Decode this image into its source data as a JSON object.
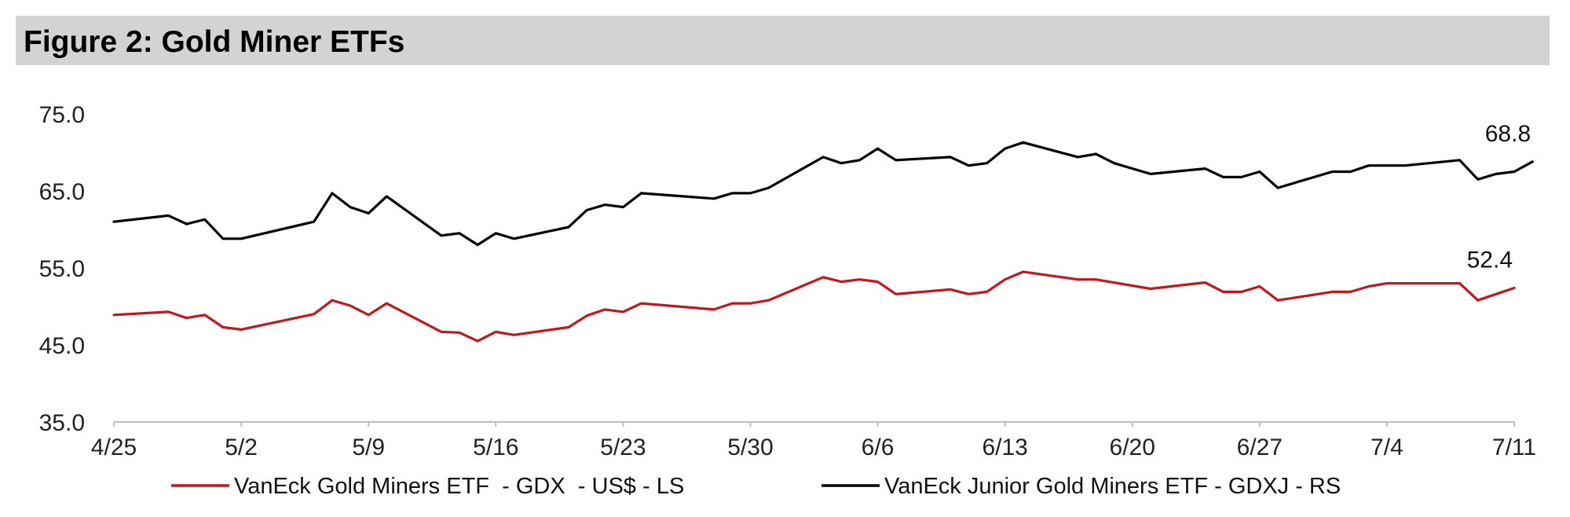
{
  "title": "Figure 2: Gold Miner ETFs",
  "chart_data": {
    "type": "line",
    "title": "Figure 2: Gold Miner ETFs",
    "xlabel": "",
    "ylabel": "",
    "ylim": [
      35,
      75
    ],
    "y_ticks": [
      "35.0",
      "45.0",
      "55.0",
      "65.0",
      "75.0"
    ],
    "x_ticks": [
      "4/25",
      "5/2",
      "5/9",
      "5/16",
      "5/23",
      "5/30",
      "6/6",
      "6/13",
      "6/20",
      "6/27",
      "7/4",
      "7/11"
    ],
    "grid": false,
    "legend_position": "bottom",
    "x_axis_dates": [
      "4/25",
      "4/26",
      "4/27",
      "4/28",
      "4/29",
      "5/2",
      "5/3",
      "5/4",
      "5/5",
      "5/6",
      "5/9",
      "5/10",
      "5/11",
      "5/12",
      "5/13",
      "5/16",
      "5/17",
      "5/18",
      "5/19",
      "5/20",
      "5/23",
      "5/24",
      "5/25",
      "5/26",
      "5/27",
      "5/30",
      "5/31",
      "6/1",
      "6/2",
      "6/3",
      "6/6",
      "6/7",
      "6/8",
      "6/9",
      "6/10",
      "6/13",
      "6/14",
      "6/15",
      "6/16",
      "6/17",
      "6/20",
      "6/21",
      "6/22",
      "6/23",
      "6/24",
      "6/27",
      "6/28",
      "6/29",
      "6/30",
      "7/1",
      "7/4",
      "7/5",
      "7/6",
      "7/7",
      "7/8",
      "7/11"
    ],
    "series": [
      {
        "name": "VanEck Gold Miners ETF  - GDX  - US$ - LS",
        "color": "#c0181c",
        "points": [
          [
            "4/25",
            48.9
          ],
          [
            "4/28",
            49.3
          ],
          [
            "4/29",
            48.5
          ],
          [
            "4/30",
            48.9
          ],
          [
            "5/1",
            47.3
          ],
          [
            "5/2",
            47.0
          ],
          [
            "5/6",
            49.0
          ],
          [
            "5/7",
            50.8
          ],
          [
            "5/8",
            50.1
          ],
          [
            "5/9",
            48.9
          ],
          [
            "5/10",
            50.4
          ],
          [
            "5/13",
            46.7
          ],
          [
            "5/14",
            46.6
          ],
          [
            "5/15",
            45.5
          ],
          [
            "5/16",
            46.7
          ],
          [
            "5/17",
            46.3
          ],
          [
            "5/20",
            47.3
          ],
          [
            "5/21",
            48.8
          ],
          [
            "5/22",
            49.6
          ],
          [
            "5/23",
            49.3
          ],
          [
            "5/24",
            50.4
          ],
          [
            "5/28",
            49.6
          ],
          [
            "5/29",
            50.4
          ],
          [
            "5/30",
            50.4
          ],
          [
            "5/31",
            50.8
          ],
          [
            "6/3",
            53.8
          ],
          [
            "6/4",
            53.2
          ],
          [
            "6/5",
            53.5
          ],
          [
            "6/6",
            53.2
          ],
          [
            "6/7",
            51.6
          ],
          [
            "6/10",
            52.2
          ],
          [
            "6/11",
            51.6
          ],
          [
            "6/12",
            51.9
          ],
          [
            "6/13",
            53.5
          ],
          [
            "6/14",
            54.5
          ],
          [
            "6/17",
            53.5
          ],
          [
            "6/18",
            53.5
          ],
          [
            "6/21",
            52.3
          ],
          [
            "6/24",
            53.1
          ],
          [
            "6/25",
            51.9
          ],
          [
            "6/26",
            51.9
          ],
          [
            "6/27",
            52.6
          ],
          [
            "6/28",
            50.8
          ],
          [
            "7/1",
            51.9
          ],
          [
            "7/2",
            51.9
          ],
          [
            "7/3",
            52.6
          ],
          [
            "7/4",
            53.0
          ],
          [
            "7/8",
            53.0
          ],
          [
            "7/9",
            50.8
          ],
          [
            "7/10",
            51.6
          ],
          [
            "7/11",
            52.4
          ]
        ],
        "end_label": "52.4"
      },
      {
        "name": "VanEck Junior Gold Miners ETF - GDXJ - RS",
        "color": "#000000",
        "points": [
          [
            "4/25",
            61.0
          ],
          [
            "4/28",
            61.8
          ],
          [
            "4/29",
            60.7
          ],
          [
            "4/30",
            61.3
          ],
          [
            "5/1",
            58.8
          ],
          [
            "5/2",
            58.8
          ],
          [
            "5/6",
            61.0
          ],
          [
            "5/7",
            64.7
          ],
          [
            "5/8",
            62.9
          ],
          [
            "5/9",
            62.1
          ],
          [
            "5/10",
            64.3
          ],
          [
            "5/13",
            59.2
          ],
          [
            "5/14",
            59.5
          ],
          [
            "5/15",
            58.0
          ],
          [
            "5/16",
            59.5
          ],
          [
            "5/17",
            58.8
          ],
          [
            "5/20",
            60.3
          ],
          [
            "5/21",
            62.5
          ],
          [
            "5/22",
            63.2
          ],
          [
            "5/23",
            62.9
          ],
          [
            "5/24",
            64.7
          ],
          [
            "5/28",
            64.0
          ],
          [
            "5/29",
            64.7
          ],
          [
            "5/30",
            64.7
          ],
          [
            "5/31",
            65.4
          ],
          [
            "6/3",
            69.4
          ],
          [
            "6/4",
            68.6
          ],
          [
            "6/5",
            69.0
          ],
          [
            "6/6",
            70.5
          ],
          [
            "6/7",
            69.0
          ],
          [
            "6/10",
            69.4
          ],
          [
            "6/11",
            68.3
          ],
          [
            "6/12",
            68.6
          ],
          [
            "6/13",
            70.5
          ],
          [
            "6/14",
            71.3
          ],
          [
            "6/17",
            69.4
          ],
          [
            "6/18",
            69.8
          ],
          [
            "6/19",
            68.6
          ],
          [
            "6/21",
            67.2
          ],
          [
            "6/24",
            67.9
          ],
          [
            "6/25",
            66.8
          ],
          [
            "6/26",
            66.8
          ],
          [
            "6/27",
            67.5
          ],
          [
            "6/28",
            65.4
          ],
          [
            "7/1",
            67.5
          ],
          [
            "7/2",
            67.5
          ],
          [
            "7/3",
            68.3
          ],
          [
            "7/5",
            68.3
          ],
          [
            "7/8",
            69.0
          ],
          [
            "7/9",
            66.5
          ],
          [
            "7/10",
            67.2
          ],
          [
            "7/11",
            67.5
          ],
          [
            "7/12",
            68.8
          ]
        ],
        "end_label": "68.8"
      }
    ]
  }
}
